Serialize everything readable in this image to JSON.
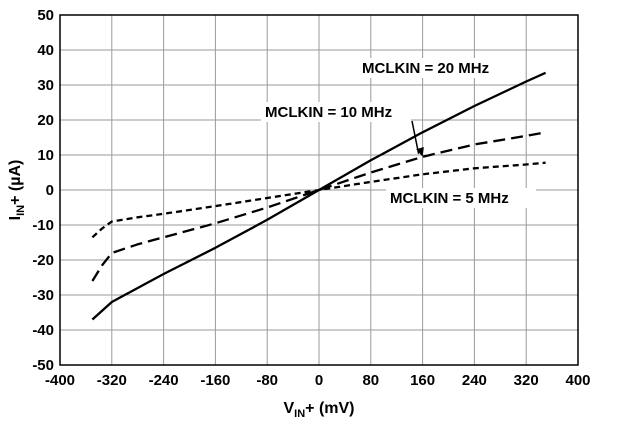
{
  "chart_data": {
    "type": "line",
    "xlabel": {
      "main": "V",
      "sub": "IN",
      "rest": "+ (mV)"
    },
    "ylabel": {
      "main": "I",
      "sub": "IN",
      "rest": "+ (µA)"
    },
    "xlim": [
      -400,
      400
    ],
    "ylim": [
      -50,
      50
    ],
    "xticks": [
      "-400",
      "-320",
      "-240",
      "-160",
      "-80",
      "0",
      "80",
      "160",
      "240",
      "320",
      "400"
    ],
    "yticks": [
      "50",
      "40",
      "30",
      "20",
      "10",
      "0",
      "-10",
      "-20",
      "-30",
      "-40",
      "-50"
    ],
    "grid": true,
    "series": [
      {
        "name": "MCLKIN = 20 MHz",
        "style": "solid",
        "x": [
          -350,
          -320,
          -280,
          -240,
          -160,
          -80,
          0,
          80,
          160,
          240,
          320,
          350
        ],
        "y": [
          -37,
          -32,
          -28,
          -24,
          -16.5,
          -8.5,
          0,
          8.5,
          16.5,
          24,
          31,
          33.5
        ]
      },
      {
        "name": "MCLKIN = 10 MHz",
        "style": "long-dash",
        "x": [
          -350,
          -335,
          -320,
          -280,
          -240,
          -160,
          -80,
          0,
          80,
          160,
          240,
          320,
          350
        ],
        "y": [
          -26,
          -21.5,
          -18,
          -15.5,
          -13.5,
          -9.5,
          -5,
          0,
          5,
          9.5,
          13,
          15.5,
          16.5
        ]
      },
      {
        "name": "MCLKIN = 5 MHz",
        "style": "short-dash",
        "x": [
          -350,
          -335,
          -320,
          -280,
          -240,
          -160,
          -80,
          0,
          80,
          160,
          240,
          320,
          350
        ],
        "y": [
          -13.5,
          -11,
          -9,
          -7.8,
          -6.8,
          -4.6,
          -2.3,
          0,
          2.3,
          4.5,
          6.2,
          7.3,
          7.8
        ]
      }
    ],
    "annotations": [
      {
        "text": "MCLKIN = 20 MHz",
        "series": 0
      },
      {
        "text": "MCLKIN = 10 MHz",
        "series": 1,
        "arrow_to": [
          160,
          9.5
        ]
      },
      {
        "text": "MCLKIN = 5 MHz",
        "series": 2
      }
    ]
  }
}
